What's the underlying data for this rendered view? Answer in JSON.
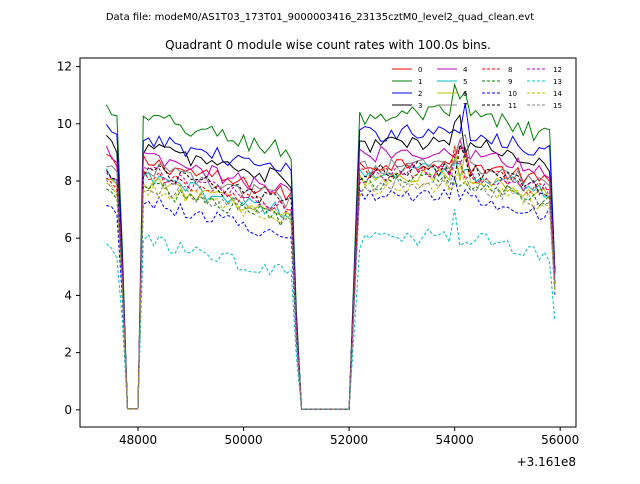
{
  "suptitle": "Data file: modeM0/AS1T03_173T01_9000003416_23135cztM0_level2_quad_clean.evt",
  "chart_data": {
    "type": "line",
    "title": "Quadrant 0 module wise count rates with 100.0s bins.",
    "xlabel": "",
    "ylabel": "",
    "x_offset_label": "+3.161e8",
    "xlim": [
      46900,
      56300
    ],
    "ylim": [
      -0.6,
      12.3
    ],
    "xticks": [
      48000,
      50000,
      52000,
      54000,
      56000
    ],
    "xtick_labels": [
      "48000",
      "50000",
      "52000",
      "54000",
      "56000"
    ],
    "yticks": [
      0,
      2,
      4,
      6,
      8,
      10,
      12
    ],
    "ytick_labels": [
      "0",
      "2",
      "4",
      "6",
      "8",
      "10",
      "12"
    ],
    "grid": false,
    "legend_position": "top-right",
    "time_bins": {
      "segment1_start": 47400,
      "segment1_end": 47700,
      "gap1_end": 48000,
      "segment2_start": 48100,
      "segment2_end": 50900,
      "gap2_start": 51100,
      "gap2_end": 52000,
      "segment3_start": 52200,
      "segment3_end": 55800,
      "last_bin": 55900,
      "bin_width": 100
    },
    "series": [
      {
        "name": "0",
        "color": "#ff0000",
        "dash": "solid",
        "start": 8.9,
        "level": 7.8,
        "seg3": 8.5,
        "end": 4.8,
        "noise": 0.28
      },
      {
        "name": "1",
        "color": "#008000",
        "dash": "solid",
        "start": 10.6,
        "level": 9.3,
        "seg3": 10.2,
        "end": 4.8,
        "noise": 0.35
      },
      {
        "name": "2",
        "color": "#0000ff",
        "dash": "solid",
        "start": 9.9,
        "level": 8.6,
        "seg3": 9.6,
        "end": 4.9,
        "noise": 0.3
      },
      {
        "name": "3",
        "color": "#000000",
        "dash": "solid",
        "start": 9.5,
        "level": 8.3,
        "seg3": 9.2,
        "end": 4.8,
        "noise": 0.3
      },
      {
        "name": "4",
        "color": "#c000c0",
        "dash": "solid",
        "start": 9.1,
        "level": 7.9,
        "seg3": 8.9,
        "end": 4.7,
        "noise": 0.3
      },
      {
        "name": "5",
        "color": "#00bfbf",
        "dash": "solid",
        "start": 8.3,
        "level": 7.2,
        "seg3": 8.2,
        "end": 4.4,
        "noise": 0.28
      },
      {
        "name": "6",
        "color": "#bfbf00",
        "dash": "solid",
        "start": 8.2,
        "level": 7.1,
        "seg3": 8.0,
        "end": 4.4,
        "noise": 0.28
      },
      {
        "name": "7",
        "color": "#808080",
        "dash": "solid",
        "start": 8.6,
        "level": 7.6,
        "seg3": 8.4,
        "end": 4.5,
        "noise": 0.28
      },
      {
        "name": "8",
        "color": "#ff0000",
        "dash": "dashed",
        "start": 8.2,
        "level": 7.3,
        "seg3": 8.2,
        "end": 4.3,
        "noise": 0.28
      },
      {
        "name": "9",
        "color": "#008000",
        "dash": "dashed",
        "start": 7.8,
        "level": 6.9,
        "seg3": 7.9,
        "end": 4.2,
        "noise": 0.28
      },
      {
        "name": "10",
        "color": "#0000ff",
        "dash": "dashed",
        "start": 7.2,
        "level": 6.4,
        "seg3": 7.4,
        "end": 4.0,
        "noise": 0.3
      },
      {
        "name": "11",
        "color": "#000000",
        "dash": "dashed",
        "start": 8.4,
        "level": 7.5,
        "seg3": 8.3,
        "end": 4.4,
        "noise": 0.28
      },
      {
        "name": "12",
        "color": "#c000c0",
        "dash": "dashed",
        "start": 8.3,
        "level": 7.4,
        "seg3": 8.2,
        "end": 4.3,
        "noise": 0.28
      },
      {
        "name": "13",
        "color": "#00bfbf",
        "dash": "dashed",
        "start": 5.8,
        "level": 5.0,
        "seg3": 5.9,
        "end": 3.1,
        "noise": 0.3
      },
      {
        "name": "14",
        "color": "#bfbf00",
        "dash": "dashed",
        "start": 7.9,
        "level": 6.9,
        "seg3": 7.7,
        "end": 4.1,
        "noise": 0.28
      },
      {
        "name": "15",
        "color": "#808080",
        "dash": "dashed",
        "start": 8.0,
        "level": 7.0,
        "seg3": 7.8,
        "end": 4.2,
        "noise": 0.28
      }
    ]
  }
}
